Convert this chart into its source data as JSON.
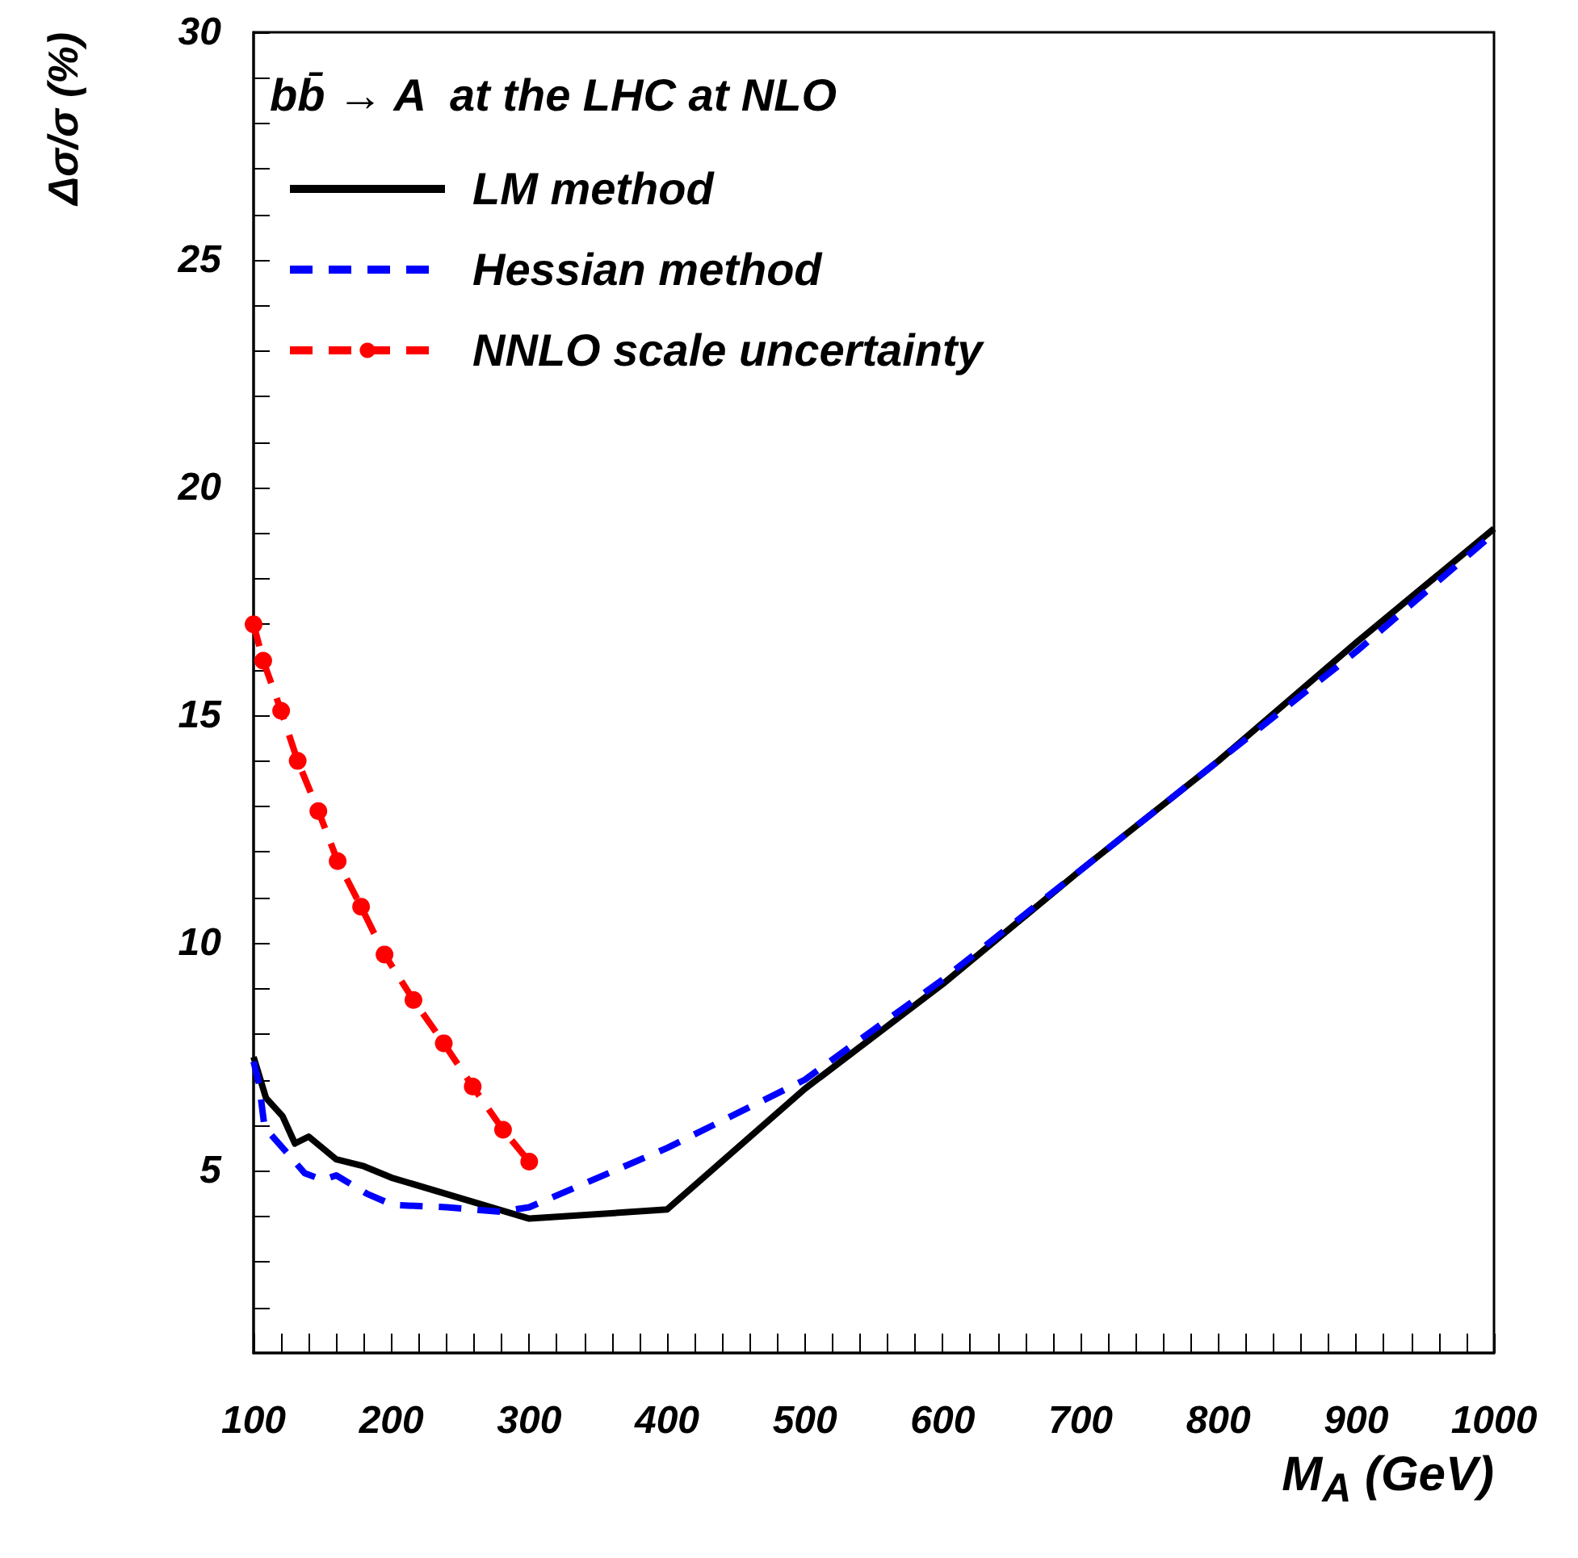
{
  "chart_data": {
    "type": "line",
    "title": "bb̄ → A  at the LHC at NLO",
    "xlabel": "M$_{A}$ (GeV)",
    "ylabel": "Δσ/σ (%)",
    "series": [
      {
        "name": "LM method",
        "color": "#000000",
        "line_style": "solid",
        "marker": "none",
        "x": [
          100,
          109,
          121,
          130,
          140,
          160,
          180,
          200,
          300,
          400,
          500,
          600,
          700,
          800,
          900,
          1000
        ],
        "values": [
          7.5,
          6.6,
          6.2,
          5.6,
          5.75,
          5.25,
          5.1,
          4.85,
          3.95,
          4.15,
          6.8,
          9.1,
          11.6,
          14.0,
          16.6,
          19.1
        ]
      },
      {
        "name": "Hessian method",
        "color": "#0000ff",
        "line_style": "dashed",
        "marker": "none",
        "x": [
          100,
          104,
          108,
          127,
          137,
          150,
          160,
          182,
          201,
          240,
          279,
          300,
          400,
          500,
          600,
          700,
          800,
          900,
          1000
        ],
        "values": [
          7.4,
          6.9,
          5.95,
          5.3,
          4.95,
          4.8,
          4.9,
          4.5,
          4.25,
          4.2,
          4.1,
          4.2,
          5.5,
          7.0,
          9.2,
          11.6,
          14.0,
          16.4,
          19.0
        ]
      },
      {
        "name": "NNLO scale uncertainty",
        "color": "#ff0000",
        "line_style": "dashed",
        "marker": "circle",
        "x": [
          100,
          107,
          120,
          132,
          147,
          161,
          178,
          195,
          216,
          238,
          259,
          281,
          300
        ],
        "values": [
          17.0,
          16.2,
          15.1,
          14.0,
          12.9,
          11.8,
          10.8,
          9.75,
          8.75,
          7.8,
          6.85,
          5.9,
          5.2
        ]
      }
    ],
    "xlim": [
      100,
      1000
    ],
    "xticks": [
      100,
      {
        "value": 120,
        "label": null
      },
      {
        "value": 140,
        "label": null
      },
      {
        "value": 160,
        "label": null
      },
      {
        "value": 180,
        "label": null
      },
      200,
      {
        "value": 220,
        "label": null
      },
      {
        "value": 240,
        "label": null
      },
      {
        "value": 260,
        "label": null
      },
      {
        "value": 280,
        "label": null
      },
      300,
      {
        "value": 320,
        "label": null
      },
      {
        "value": 340,
        "label": null
      },
      {
        "value": 360,
        "label": null
      },
      {
        "value": 380,
        "label": null
      },
      400,
      {
        "value": 420,
        "label": null
      },
      {
        "value": 440,
        "label": null
      },
      {
        "value": 460,
        "label": null
      },
      {
        "value": 480,
        "label": null
      },
      500,
      {
        "value": 520,
        "label": null
      },
      {
        "value": 540,
        "label": null
      },
      {
        "value": 560,
        "label": null
      },
      {
        "value": 580,
        "label": null
      },
      600,
      {
        "value": 620,
        "label": null
      },
      {
        "value": 640,
        "label": null
      },
      {
        "value": 660,
        "label": null
      },
      {
        "value": 680,
        "label": null
      },
      700,
      {
        "value": 720,
        "label": null
      },
      {
        "value": 740,
        "label": null
      },
      {
        "value": 760,
        "label": null
      },
      {
        "value": 780,
        "label": null
      },
      800,
      {
        "value": 820,
        "label": null
      },
      {
        "value": 840,
        "label": null
      },
      {
        "value": 860,
        "label": null
      },
      {
        "value": 880,
        "label": null
      },
      900,
      {
        "value": 920,
        "label": null
      },
      {
        "value": 940,
        "label": null
      },
      {
        "value": 960,
        "label": null
      },
      {
        "value": 980,
        "label": null
      },
      1000
    ],
    "ylim": [
      1,
      30
    ],
    "yticks": [
      {
        "value": 2,
        "label": null
      },
      {
        "value": 3,
        "label": null
      },
      {
        "value": 4,
        "label": null
      },
      5,
      {
        "value": 6,
        "label": null
      },
      {
        "value": 7,
        "label": null
      },
      {
        "value": 8,
        "label": null
      },
      {
        "value": 9,
        "label": null
      },
      10,
      {
        "value": 11,
        "label": null
      },
      {
        "value": 12,
        "label": null
      },
      {
        "value": 13,
        "label": null
      },
      {
        "value": 14,
        "label": null
      },
      15,
      {
        "value": 16,
        "label": null
      },
      {
        "value": 17,
        "label": null
      },
      {
        "value": 18,
        "label": null
      },
      {
        "value": 19,
        "label": null
      },
      20,
      {
        "value": 21,
        "label": null
      },
      {
        "value": 22,
        "label": null
      },
      {
        "value": 23,
        "label": null
      },
      {
        "value": 24,
        "label": null
      },
      25,
      {
        "value": 26,
        "label": null
      },
      {
        "value": 27,
        "label": null
      },
      {
        "value": 28,
        "label": null
      },
      {
        "value": 29,
        "label": null
      },
      30
    ],
    "grid": false,
    "legend": "top left"
  }
}
